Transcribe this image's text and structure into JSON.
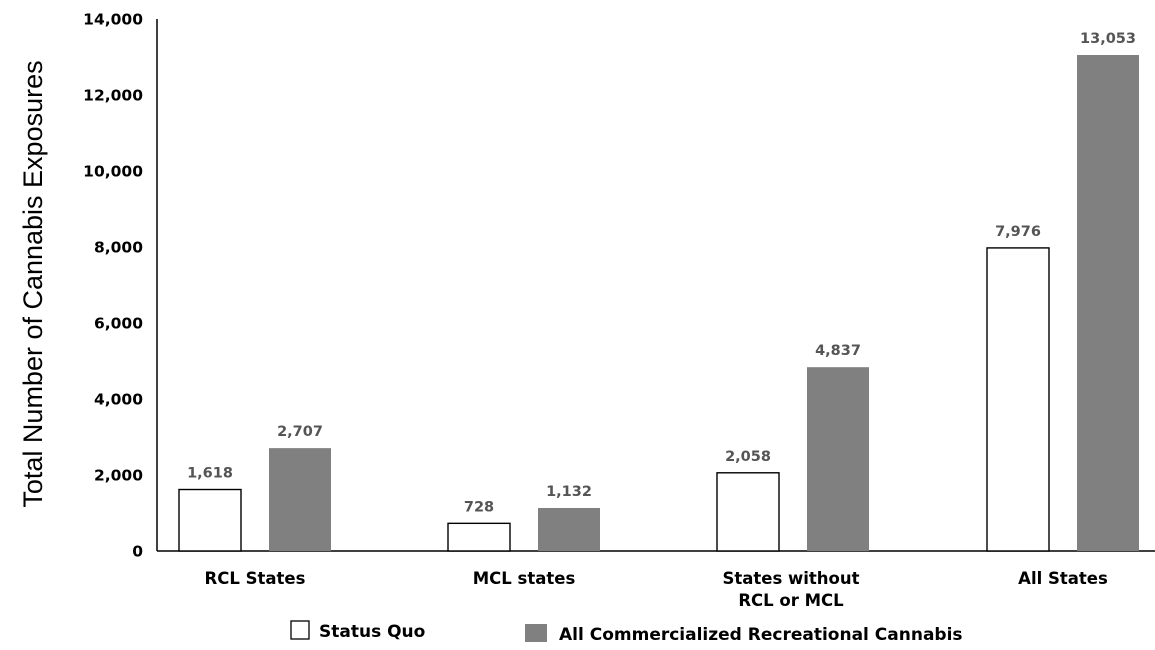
{
  "chart_data": {
    "type": "bar",
    "ylabel": "Total Number of Cannabis Exposures",
    "xlabel": "",
    "ylim": [
      0,
      14000
    ],
    "yticks": [
      "0",
      "2,000",
      "4,000",
      "6,000",
      "8,000",
      "10,000",
      "12,000",
      "14,000"
    ],
    "categories": [
      [
        "RCL States"
      ],
      [
        "MCL states"
      ],
      [
        "States without",
        "RCL or MCL"
      ],
      [
        "All States"
      ]
    ],
    "series": [
      {
        "name": "Status Quo",
        "color": "#ffffff",
        "values": [
          1618,
          728,
          2058,
          7976
        ],
        "labels": [
          "1,618",
          "728",
          "2,058",
          "7,976"
        ]
      },
      {
        "name": "All Commercialized Recreational Cannabis",
        "color": "#808080",
        "values": [
          2707,
          1132,
          4837,
          13053
        ],
        "labels": [
          "2,707",
          "1,132",
          "4,837",
          "13,053"
        ]
      }
    ],
    "grid": false,
    "legend": "bottom"
  }
}
